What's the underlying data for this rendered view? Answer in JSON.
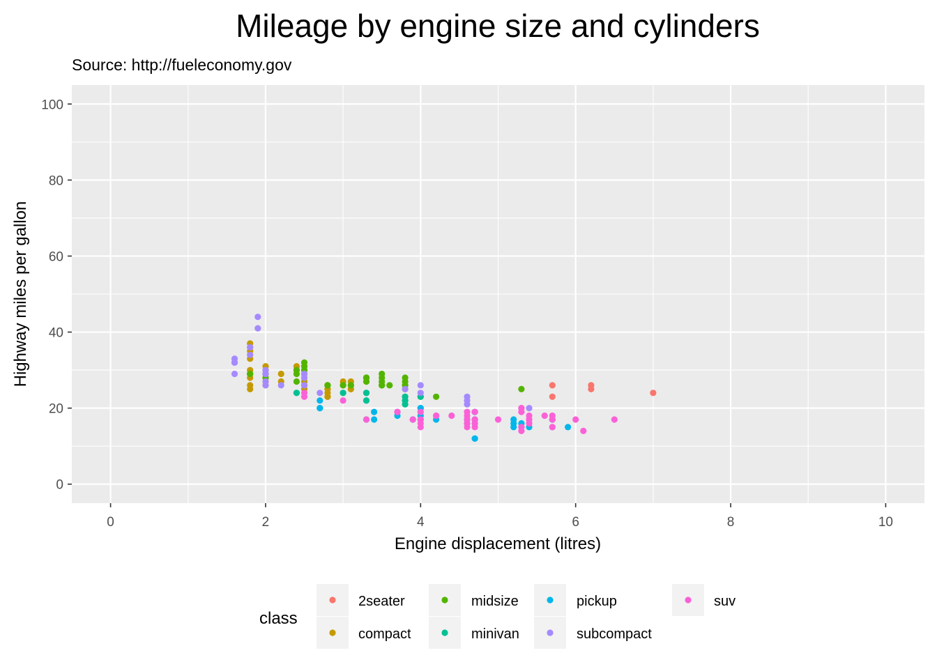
{
  "chart_data": {
    "type": "scatter",
    "title": "Mileage by engine size and cylinders",
    "subtitle": "Source: http://fueleconomy.gov",
    "xlabel": "Engine displacement (litres)",
    "ylabel": "Highway miles per gallon",
    "xlim": [
      -0.5,
      10.5
    ],
    "ylim": [
      -5,
      105
    ],
    "x_ticks": [
      0,
      2,
      4,
      6,
      8,
      10
    ],
    "y_ticks": [
      0,
      20,
      40,
      60,
      80,
      100
    ],
    "grid": true,
    "background": "#EBEBEB",
    "legend": {
      "title": "class",
      "placement": "bottom"
    },
    "series": [
      {
        "name": "2seater",
        "color": "#F8766D",
        "points": [
          [
            5.7,
            26
          ],
          [
            5.7,
            23
          ],
          [
            6.2,
            26
          ],
          [
            6.2,
            25
          ],
          [
            7.0,
            24
          ]
        ]
      },
      {
        "name": "compact",
        "color": "#C49A00",
        "points": [
          [
            1.8,
            29
          ],
          [
            1.8,
            29
          ],
          [
            2.0,
            31
          ],
          [
            2.0,
            30
          ],
          [
            2.8,
            26
          ],
          [
            2.8,
            26
          ],
          [
            3.1,
            27
          ],
          [
            1.8,
            26
          ],
          [
            1.8,
            25
          ],
          [
            1.8,
            28
          ],
          [
            2.0,
            28
          ],
          [
            2.0,
            29
          ],
          [
            2.8,
            25
          ],
          [
            2.8,
            25
          ],
          [
            3.1,
            25
          ],
          [
            3.1,
            25
          ],
          [
            2.8,
            23
          ],
          [
            2.8,
            24
          ],
          [
            1.8,
            37
          ],
          [
            1.8,
            35
          ],
          [
            1.8,
            33
          ],
          [
            1.8,
            30
          ],
          [
            2.2,
            29
          ],
          [
            2.2,
            27
          ],
          [
            2.4,
            31
          ],
          [
            2.4,
            30
          ],
          [
            3.0,
            26
          ],
          [
            3.3,
            27
          ],
          [
            2.5,
            27
          ],
          [
            2.5,
            25
          ],
          [
            2.5,
            27
          ],
          [
            2.0,
            29
          ],
          [
            2.0,
            29
          ],
          [
            2.5,
            30
          ],
          [
            2.5,
            29
          ],
          [
            3.0,
            27
          ],
          [
            2.0,
            27
          ],
          [
            2.0,
            26
          ],
          [
            2.8,
            23
          ]
        ]
      },
      {
        "name": "midsize",
        "color": "#53B400",
        "points": [
          [
            2.4,
            27
          ],
          [
            2.4,
            30
          ],
          [
            3.1,
            26
          ],
          [
            3.5,
            29
          ],
          [
            3.6,
            26
          ],
          [
            2.4,
            29
          ],
          [
            3.0,
            26
          ],
          [
            3.3,
            28
          ],
          [
            3.3,
            28
          ],
          [
            3.3,
            28
          ],
          [
            3.8,
            26
          ],
          [
            3.8,
            25
          ],
          [
            3.8,
            28
          ],
          [
            4.0,
            23
          ],
          [
            2.5,
            32
          ],
          [
            2.5,
            31
          ],
          [
            2.5,
            29
          ],
          [
            3.5,
            27
          ],
          [
            3.5,
            26
          ],
          [
            3.5,
            26
          ],
          [
            3.5,
            28
          ],
          [
            3.5,
            26
          ],
          [
            3.0,
            26
          ],
          [
            3.0,
            24
          ],
          [
            2.8,
            26
          ],
          [
            3.3,
            27
          ],
          [
            3.8,
            22
          ],
          [
            3.8,
            23
          ],
          [
            4.2,
            23
          ],
          [
            3.1,
            26
          ],
          [
            3.8,
            26
          ],
          [
            3.8,
            27
          ],
          [
            5.3,
            25
          ],
          [
            1.8,
            29
          ],
          [
            1.8,
            29
          ],
          [
            2.0,
            28
          ],
          [
            2.0,
            29
          ],
          [
            2.5,
            26
          ],
          [
            2.5,
            30
          ],
          [
            2.8,
            26
          ]
        ]
      },
      {
        "name": "minivan",
        "color": "#00C094",
        "points": [
          [
            2.4,
            24
          ],
          [
            3.0,
            24
          ],
          [
            3.3,
            22
          ],
          [
            3.3,
            22
          ],
          [
            3.3,
            24
          ],
          [
            3.3,
            24
          ],
          [
            3.3,
            17
          ],
          [
            3.8,
            22
          ],
          [
            3.8,
            21
          ],
          [
            3.8,
            23
          ],
          [
            4.0,
            23
          ],
          [
            2.4,
            24
          ]
        ]
      },
      {
        "name": "pickup",
        "color": "#00B6EB",
        "points": [
          [
            3.7,
            19
          ],
          [
            3.7,
            18
          ],
          [
            3.9,
            17
          ],
          [
            3.9,
            17
          ],
          [
            4.7,
            19
          ],
          [
            4.7,
            19
          ],
          [
            4.7,
            12
          ],
          [
            5.2,
            17
          ],
          [
            5.2,
            15
          ],
          [
            5.7,
            17
          ],
          [
            5.9,
            15
          ],
          [
            4.7,
            17
          ],
          [
            4.7,
            17
          ],
          [
            4.7,
            16
          ],
          [
            4.7,
            12
          ],
          [
            4.7,
            17
          ],
          [
            5.2,
            16
          ],
          [
            5.7,
            17
          ],
          [
            2.7,
            22
          ],
          [
            2.7,
            20
          ],
          [
            2.7,
            20
          ],
          [
            3.4,
            17
          ],
          [
            3.4,
            19
          ],
          [
            4.0,
            20
          ],
          [
            4.0,
            18
          ],
          [
            4.6,
            17
          ],
          [
            5.4,
            15
          ],
          [
            4.0,
            17
          ],
          [
            4.0,
            20
          ],
          [
            4.2,
            17
          ],
          [
            5.3,
            15
          ],
          [
            5.3,
            16
          ],
          [
            4.6,
            16
          ]
        ]
      },
      {
        "name": "subcompact",
        "color": "#A58AFF",
        "points": [
          [
            3.8,
            25
          ],
          [
            4.0,
            26
          ],
          [
            4.0,
            24
          ],
          [
            4.6,
            23
          ],
          [
            4.6,
            22
          ],
          [
            4.6,
            21
          ],
          [
            5.4,
            20
          ],
          [
            1.6,
            33
          ],
          [
            1.6,
            32
          ],
          [
            1.6,
            32
          ],
          [
            1.6,
            29
          ],
          [
            1.6,
            32
          ],
          [
            1.8,
            34
          ],
          [
            1.8,
            36
          ],
          [
            1.8,
            36
          ],
          [
            2.0,
            29
          ],
          [
            2.0,
            26
          ],
          [
            2.0,
            27
          ],
          [
            2.0,
            30
          ],
          [
            2.2,
            26
          ],
          [
            2.5,
            29
          ],
          [
            2.5,
            28
          ],
          [
            2.7,
            24
          ],
          [
            1.9,
            44
          ],
          [
            1.9,
            41
          ],
          [
            2.0,
            29
          ],
          [
            2.0,
            29
          ],
          [
            2.5,
            26
          ],
          [
            2.5,
            26
          ]
        ]
      },
      {
        "name": "suv",
        "color": "#FB61D7",
        "points": [
          [
            5.3,
            20
          ],
          [
            5.3,
            15
          ],
          [
            5.3,
            20
          ],
          [
            5.7,
            17
          ],
          [
            6.0,
            17
          ],
          [
            5.7,
            15
          ],
          [
            6.5,
            17
          ],
          [
            4.7,
            17
          ],
          [
            4.7,
            17
          ],
          [
            4.7,
            19
          ],
          [
            5.7,
            18
          ],
          [
            6.1,
            14
          ],
          [
            4.0,
            17
          ],
          [
            4.0,
            17
          ],
          [
            4.6,
            17
          ],
          [
            5.0,
            17
          ],
          [
            4.2,
            18
          ],
          [
            4.2,
            18
          ],
          [
            4.6,
            16
          ],
          [
            4.6,
            18
          ],
          [
            4.0,
            16
          ],
          [
            4.0,
            17
          ],
          [
            4.4,
            18
          ],
          [
            4.6,
            17
          ],
          [
            5.4,
            18
          ],
          [
            5.4,
            17
          ],
          [
            5.4,
            16
          ],
          [
            5.4,
            17
          ],
          [
            5.3,
            19
          ],
          [
            5.3,
            14
          ],
          [
            5.6,
            18
          ],
          [
            3.0,
            22
          ],
          [
            3.7,
            19
          ],
          [
            4.0,
            15
          ],
          [
            4.7,
            15
          ],
          [
            3.3,
            17
          ],
          [
            2.5,
            23
          ],
          [
            2.5,
            24
          ],
          [
            3.9,
            17
          ],
          [
            4.7,
            16
          ],
          [
            5.7,
            15
          ],
          [
            4.6,
            15
          ],
          [
            5.4,
            16
          ],
          [
            4.0,
            19
          ],
          [
            4.6,
            19
          ]
        ]
      }
    ]
  }
}
